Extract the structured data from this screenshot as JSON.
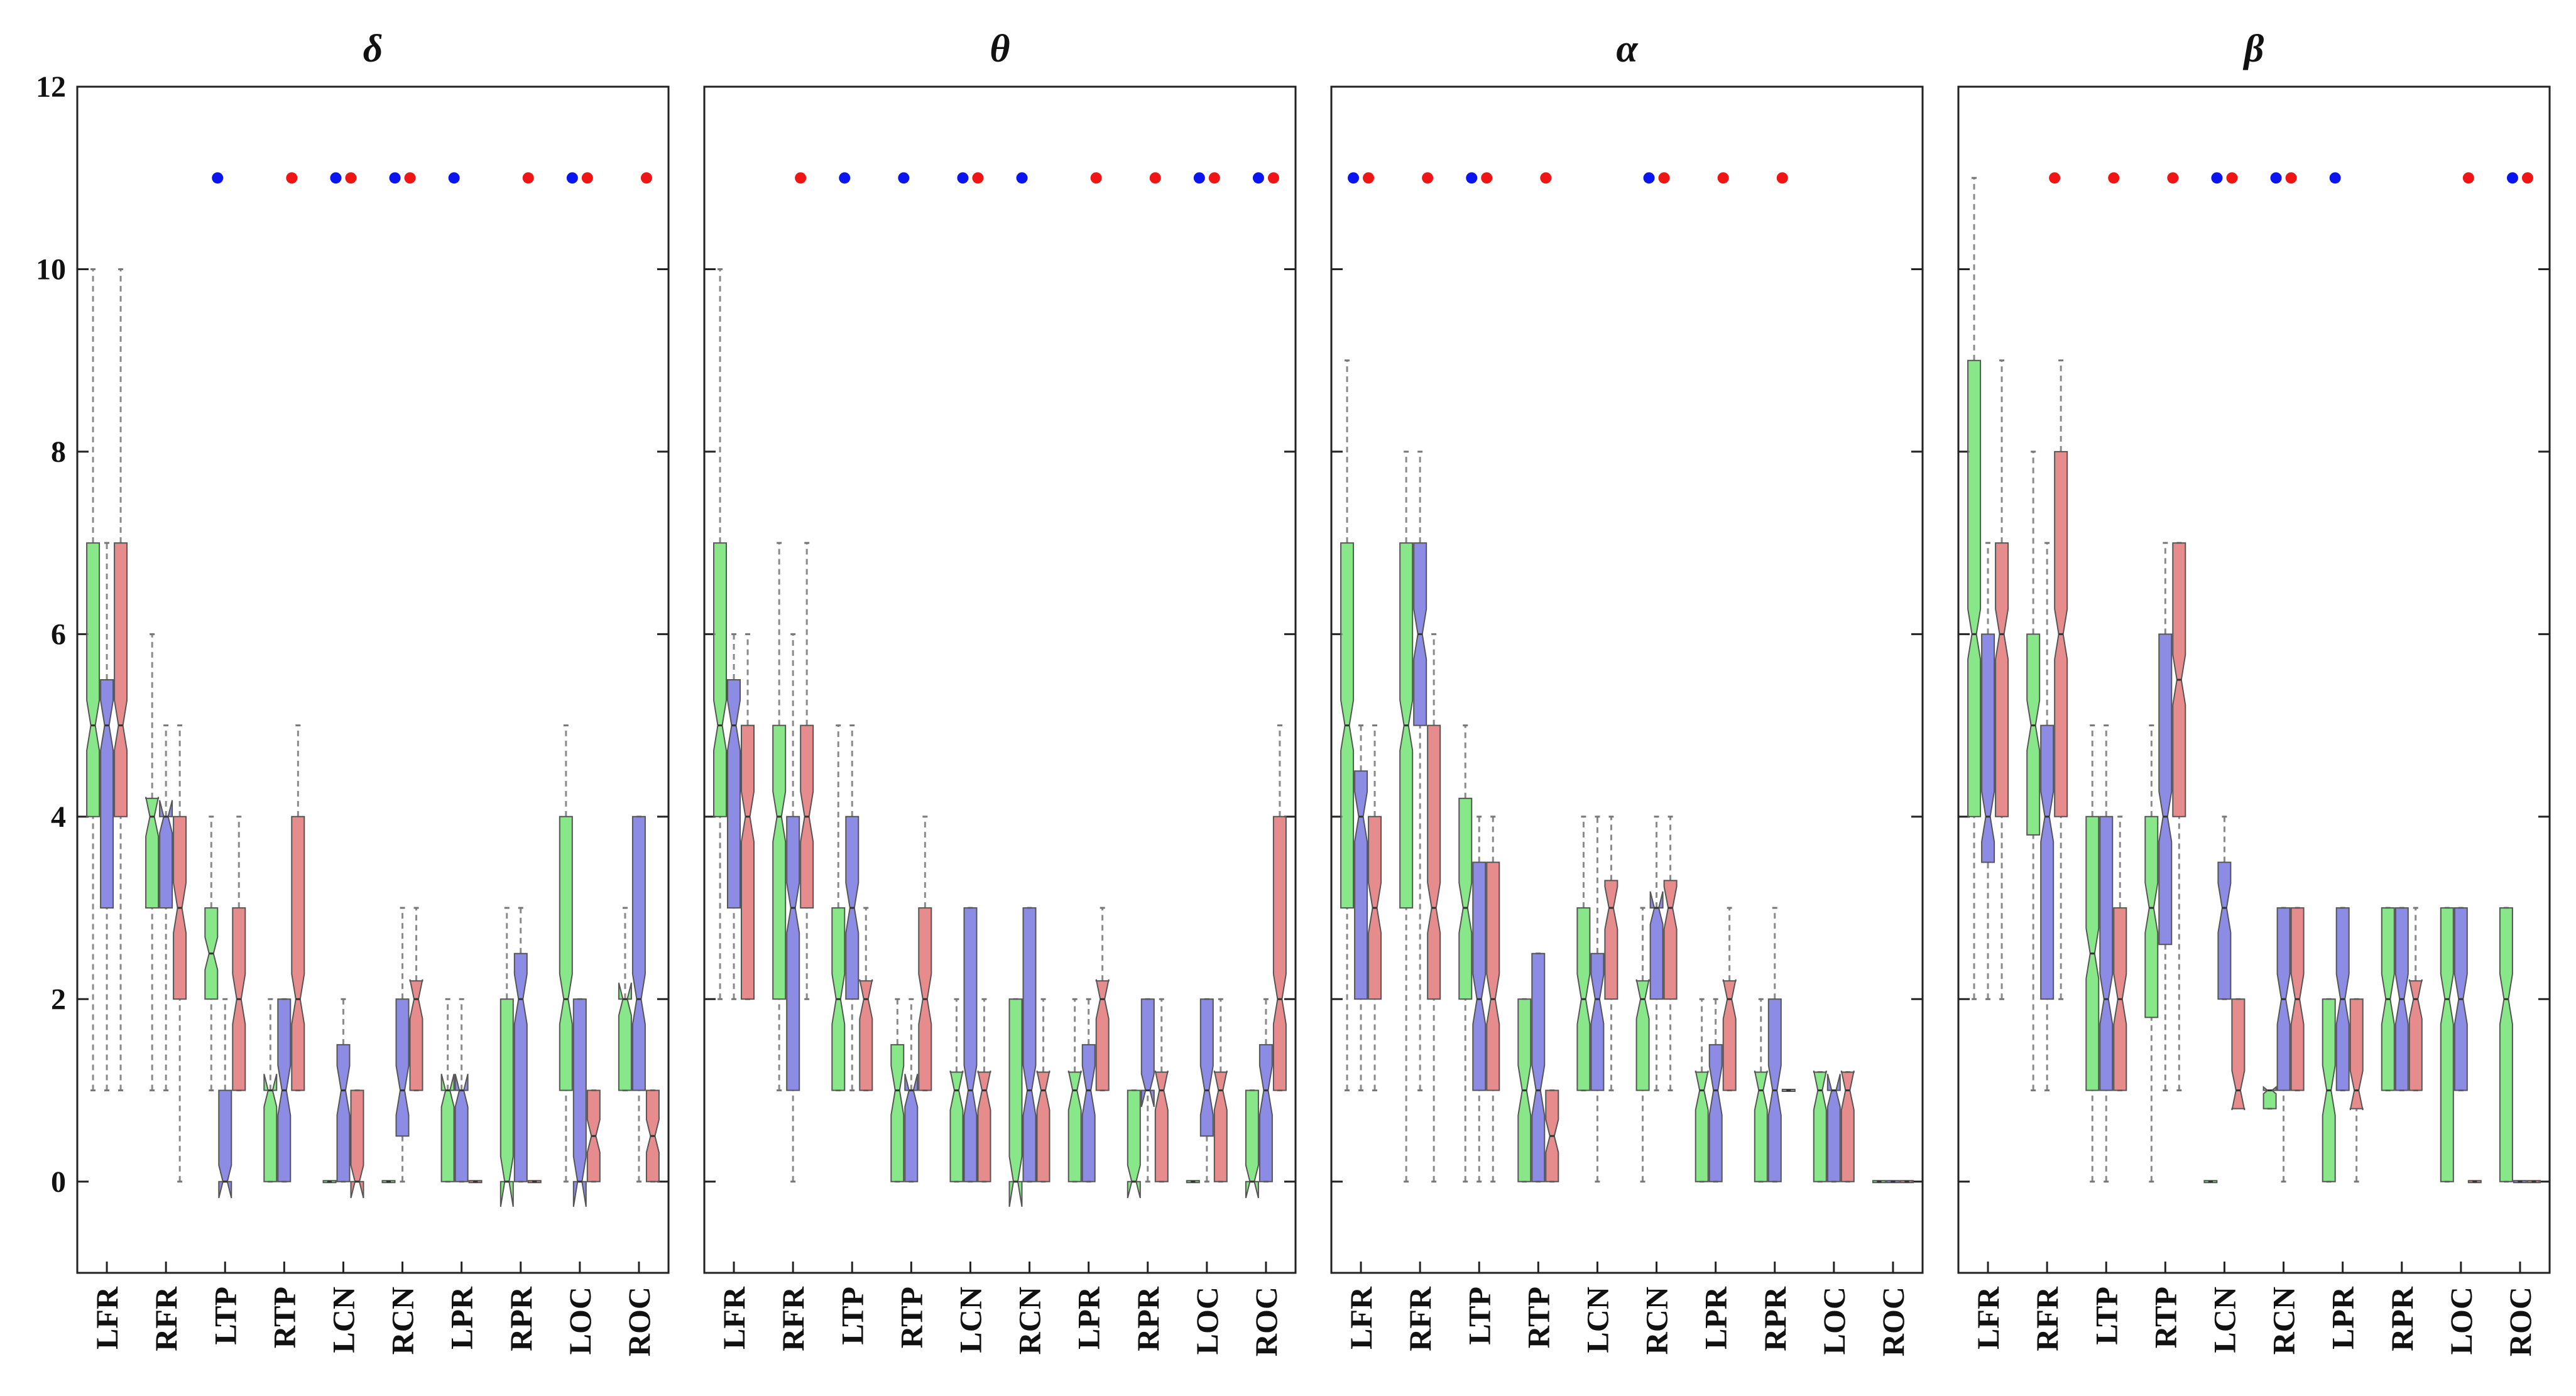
{
  "chart_data": {
    "type": "box",
    "title": "",
    "xlabel": "",
    "ylabel": "",
    "ylim": [
      -1,
      12
    ],
    "yticks": [
      0,
      2,
      4,
      6,
      8,
      10,
      12
    ],
    "categories": [
      "LFR",
      "RFR",
      "LTP",
      "RTP",
      "LCN",
      "RCN",
      "LPR",
      "RPR",
      "LOC",
      "ROC"
    ],
    "series_colors": {
      "green": "#66e066",
      "blue": "#6b6bdc",
      "red": "#e06b6b"
    },
    "dot_colors": {
      "blue": "#0a14f0",
      "red": "#f01414"
    },
    "significance_y": 11,
    "panels": [
      {
        "title": "δ",
        "boxes": [
          [
            [
              1,
              4,
              5,
              7,
              10
            ],
            [
              1,
              3,
              5,
              5.5,
              7
            ],
            [
              1,
              4,
              5,
              7,
              10
            ]
          ],
          [
            [
              1,
              3,
              4,
              4.2,
              6
            ],
            [
              1,
              3,
              4,
              4,
              5
            ],
            [
              0,
              2,
              3,
              4,
              5
            ]
          ],
          [
            [
              1,
              2,
              2.5,
              3,
              4
            ],
            [
              0,
              0,
              0,
              1,
              2
            ],
            [
              1,
              1,
              2,
              3,
              4
            ]
          ],
          [
            [
              0,
              0,
              1,
              1,
              2
            ],
            [
              0,
              0,
              1,
              2,
              2
            ],
            [
              1,
              1,
              2,
              4,
              5
            ]
          ],
          [
            [
              0,
              0,
              0,
              0,
              0
            ],
            [
              0,
              0,
              1,
              1.5,
              2
            ],
            [
              0,
              0,
              0,
              1,
              1
            ]
          ],
          [
            [
              0,
              0,
              0,
              0,
              0
            ],
            [
              0,
              0.5,
              1,
              2,
              3
            ],
            [
              1,
              1,
              2,
              2.2,
              3
            ]
          ],
          [
            [
              0,
              0,
              1,
              1,
              2
            ],
            [
              0,
              0,
              1,
              1,
              2
            ],
            [
              0,
              0,
              0,
              0,
              0
            ]
          ],
          [
            [
              0,
              0,
              0,
              2,
              3
            ],
            [
              0,
              0,
              2,
              2.5,
              3
            ],
            [
              0,
              0,
              0,
              0,
              0
            ]
          ],
          [
            [
              0,
              1,
              2,
              4,
              5
            ],
            [
              0,
              0,
              0,
              2,
              2
            ],
            [
              0,
              0,
              0.5,
              1,
              1
            ]
          ],
          [
            [
              1,
              1,
              2,
              2,
              3
            ],
            [
              0,
              1,
              2,
              4,
              4
            ],
            [
              0,
              0,
              0.5,
              1,
              1
            ]
          ]
        ],
        "significance": [
          [],
          [],
          [
            "blue"
          ],
          [
            "red"
          ],
          [
            "blue",
            "red"
          ],
          [
            "blue",
            "red"
          ],
          [
            "blue"
          ],
          [
            "red"
          ],
          [
            "blue",
            "red"
          ],
          [
            "red"
          ]
        ]
      },
      {
        "title": "θ",
        "boxes": [
          [
            [
              2,
              4,
              5,
              7,
              10
            ],
            [
              2,
              3,
              5,
              5.5,
              6
            ],
            [
              2,
              2,
              4,
              5,
              6
            ]
          ],
          [
            [
              1,
              2,
              4,
              5,
              7
            ],
            [
              0,
              1,
              3,
              4,
              6
            ],
            [
              2,
              3,
              4,
              5,
              7
            ]
          ],
          [
            [
              1,
              1,
              2,
              3,
              5
            ],
            [
              1,
              2,
              3,
              4,
              5
            ],
            [
              1,
              1,
              2,
              2.2,
              3
            ]
          ],
          [
            [
              0,
              0,
              1,
              1.5,
              2
            ],
            [
              0,
              0,
              1,
              1,
              2
            ],
            [
              1,
              1,
              2,
              3,
              4
            ]
          ],
          [
            [
              0,
              0,
              1,
              1.2,
              2
            ],
            [
              0,
              0,
              1,
              3,
              3
            ],
            [
              0,
              0,
              1,
              1.2,
              2
            ]
          ],
          [
            [
              0,
              0,
              0,
              2,
              2
            ],
            [
              0,
              0,
              1,
              3,
              3
            ],
            [
              0,
              0,
              1,
              1.2,
              2
            ]
          ],
          [
            [
              0,
              0,
              1,
              1.2,
              2
            ],
            [
              0,
              0,
              1,
              1.5,
              2
            ],
            [
              1,
              1,
              2,
              2.2,
              3
            ]
          ],
          [
            [
              0,
              0,
              0,
              1,
              1
            ],
            [
              0,
              1,
              1,
              2,
              2
            ],
            [
              0,
              0,
              1,
              1.2,
              2
            ]
          ],
          [
            [
              0,
              0,
              0,
              0,
              0
            ],
            [
              0,
              0.5,
              1,
              2,
              2
            ],
            [
              0,
              0,
              1,
              1.2,
              2
            ]
          ],
          [
            [
              0,
              0,
              0,
              1,
              1
            ],
            [
              0,
              0,
              1,
              1.5,
              2
            ],
            [
              1,
              1,
              2,
              4,
              5
            ]
          ]
        ],
        "significance": [
          [],
          [
            "red"
          ],
          [
            "blue"
          ],
          [
            "blue"
          ],
          [
            "blue",
            "red"
          ],
          [
            "blue"
          ],
          [
            "red"
          ],
          [
            "red"
          ],
          [
            "blue",
            "red"
          ],
          [
            "blue",
            "red"
          ]
        ]
      },
      {
        "title": "α",
        "boxes": [
          [
            [
              1,
              3,
              5,
              7,
              9
            ],
            [
              1,
              2,
              4,
              4.5,
              5
            ],
            [
              1,
              2,
              3,
              4,
              5
            ]
          ],
          [
            [
              0,
              3,
              5,
              7,
              8
            ],
            [
              1,
              5,
              6,
              7,
              8
            ],
            [
              0,
              2,
              3,
              5,
              6
            ]
          ],
          [
            [
              0,
              2,
              3,
              4.2,
              5
            ],
            [
              0,
              1,
              2,
              3.5,
              4
            ],
            [
              0,
              1,
              2,
              3.5,
              4
            ]
          ],
          [
            [
              0,
              0,
              1,
              2,
              2
            ],
            [
              0,
              0,
              1,
              2.5,
              2.5
            ],
            [
              0,
              0,
              0.5,
              1,
              1
            ]
          ],
          [
            [
              1,
              1,
              2,
              3,
              4
            ],
            [
              0,
              1,
              2,
              2.5,
              4
            ],
            [
              1,
              2,
              3,
              3.3,
              4
            ]
          ],
          [
            [
              0,
              1,
              2,
              2.2,
              3
            ],
            [
              1,
              2,
              3,
              3,
              4
            ],
            [
              1,
              2,
              3,
              3.3,
              4
            ]
          ],
          [
            [
              0,
              0,
              1,
              1.2,
              2
            ],
            [
              0,
              0,
              1,
              1.5,
              2
            ],
            [
              1,
              1,
              2,
              2.2,
              3
            ]
          ],
          [
            [
              0,
              0,
              1,
              1.2,
              2
            ],
            [
              0,
              0,
              1,
              2,
              3
            ],
            [
              1,
              1,
              1,
              1,
              1
            ]
          ],
          [
            [
              0,
              0,
              1,
              1.2,
              1.2
            ],
            [
              0,
              0,
              1,
              1,
              1
            ],
            [
              0,
              0,
              1,
              1.2,
              1.2
            ]
          ],
          [
            [
              0,
              0,
              0,
              0,
              0
            ],
            [
              0,
              0,
              0,
              0,
              0
            ],
            [
              0,
              0,
              0,
              0,
              0
            ]
          ]
        ],
        "significance": [
          [
            "blue",
            "red"
          ],
          [
            "red"
          ],
          [
            "blue",
            "red"
          ],
          [
            "red"
          ],
          [],
          [
            "blue",
            "red"
          ],
          [
            "red"
          ],
          [
            "red"
          ],
          [],
          []
        ]
      },
      {
        "title": "β",
        "boxes": [
          [
            [
              2,
              4,
              6,
              9,
              11
            ],
            [
              2,
              3.5,
              4,
              6,
              7
            ],
            [
              2,
              4,
              6,
              7,
              9
            ]
          ],
          [
            [
              1,
              3.8,
              5,
              6,
              8
            ],
            [
              1,
              2,
              4,
              5,
              7
            ],
            [
              2,
              4,
              6,
              8,
              9
            ]
          ],
          [
            [
              0,
              1,
              2.5,
              4,
              5
            ],
            [
              0,
              1,
              2,
              4,
              5
            ],
            [
              1,
              1,
              2,
              3,
              4
            ]
          ],
          [
            [
              0,
              1.8,
              3,
              4,
              5
            ],
            [
              1,
              2.6,
              4,
              6,
              7
            ],
            [
              1,
              4,
              5.5,
              7,
              7
            ]
          ],
          [
            [
              0,
              0,
              0,
              0,
              0
            ],
            [
              2,
              2,
              3,
              3.5,
              4
            ],
            [
              1,
              0.8,
              1,
              2,
              2
            ]
          ],
          [
            [
              0.8,
              0.8,
              1,
              1,
              1
            ],
            [
              0,
              1,
              2,
              3,
              3
            ],
            [
              1,
              1,
              2,
              3,
              3
            ]
          ],
          [
            [
              0,
              0,
              1,
              2,
              2
            ],
            [
              1,
              1,
              2,
              3,
              3
            ],
            [
              0,
              0.8,
              1,
              2,
              2
            ]
          ],
          [
            [
              1,
              1,
              2,
              3,
              3
            ],
            [
              1,
              1,
              2,
              3,
              3
            ],
            [
              1,
              1,
              2,
              2.2,
              3
            ]
          ],
          [
            [
              0,
              0,
              2,
              3,
              3
            ],
            [
              1,
              1,
              2,
              3,
              3
            ],
            [
              0,
              0,
              0,
              0,
              0
            ]
          ],
          [
            [
              0,
              0,
              2,
              3,
              3
            ],
            [
              0,
              0,
              0,
              0,
              0
            ],
            [
              0,
              0,
              0,
              0,
              0
            ]
          ]
        ],
        "significance": [
          [],
          [
            "red"
          ],
          [
            "red"
          ],
          [
            "red"
          ],
          [
            "blue",
            "red"
          ],
          [
            "blue",
            "red"
          ],
          [
            "blue"
          ],
          [],
          [
            "red"
          ],
          [
            "blue",
            "red"
          ]
        ]
      }
    ]
  }
}
